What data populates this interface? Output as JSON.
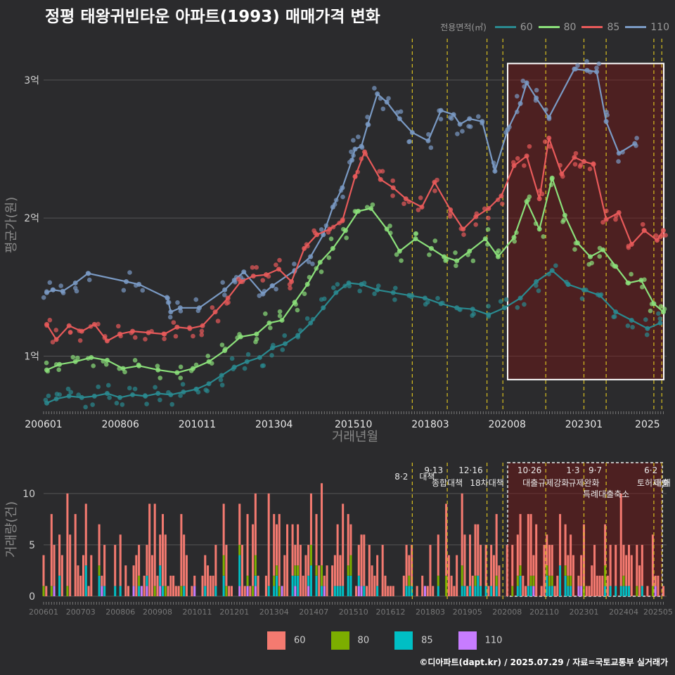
{
  "title": "정평 태왕귀빈타운 아파트(1993) 매매가격 변화",
  "footer": "©디아파트(dapt.kr) / 2025.07.29 / 자료=국토교통부 실거래가",
  "colors": {
    "s60": "#2a8a90",
    "s80": "#8be07a",
    "s85": "#e85a5a",
    "s110": "#7a9ac4",
    "b60": "#f47a70",
    "b80": "#7cae00",
    "b85": "#00bfc4",
    "b110": "#c77cff"
  },
  "top_legend": {
    "title": "전용면적(㎡)",
    "items": [
      {
        "label": "60",
        "color": "#2a8a90"
      },
      {
        "label": "80",
        "color": "#8be07a"
      },
      {
        "label": "85",
        "color": "#e85a5a"
      },
      {
        "label": "110",
        "color": "#7a9ac4"
      }
    ]
  },
  "bottom_legend": {
    "items": [
      {
        "label": "60",
        "color": "#f47a70"
      },
      {
        "label": "80",
        "color": "#7cae00"
      },
      {
        "label": "85",
        "color": "#00bfc4"
      },
      {
        "label": "110",
        "color": "#c77cff"
      }
    ]
  },
  "chart_data": [
    {
      "type": "line",
      "ylabel": "평균가(원)",
      "xlabel": "거래년월",
      "x_ticks": [
        "200601",
        "200806",
        "201011",
        "201304",
        "201510",
        "201803",
        "202008",
        "202301",
        "2025"
      ],
      "y_ticks": [
        {
          "v": 10000,
          "label": "1억"
        },
        {
          "v": 20000,
          "label": "2억"
        },
        {
          "v": 30000,
          "label": "3억"
        }
      ],
      "ylim": [
        6000,
        33000
      ],
      "xlim": [
        2006.0,
        2025.6
      ],
      "grid": true,
      "legend_position": "top-right",
      "highlight": {
        "x0": 2020.6,
        "x1": 2025.6,
        "y0": 8300,
        "y1": 31200
      },
      "series": [
        {
          "name": "110",
          "color": "#7a9ac4",
          "x": [
            2006.1,
            2006.3,
            2006.6,
            2007.0,
            2007.4,
            2008.6,
            2009.0,
            2009.9,
            2010.0,
            2010.3,
            2010.9,
            2011.7,
            2012.0,
            2012.3,
            2012.9,
            2013.2,
            2013.9,
            2014.4,
            2014.8,
            2015.1,
            2015.4,
            2015.7,
            2015.8,
            2016.0,
            2016.2,
            2016.5,
            2016.8,
            2017.2,
            2017.6,
            2018.1,
            2018.5,
            2018.9,
            2019.1,
            2019.4,
            2019.8,
            2020.2,
            2020.6,
            2021.0,
            2021.2,
            2021.5,
            2021.9,
            2022.7,
            2023.1,
            2023.4,
            2023.7,
            2024.1,
            2024.6
          ],
          "y": [
            14600,
            14800,
            14700,
            15300,
            16000,
            15400,
            15200,
            14200,
            13200,
            13500,
            13500,
            14800,
            15500,
            16100,
            14500,
            15100,
            16200,
            17200,
            18800,
            20800,
            22200,
            24200,
            25000,
            25200,
            26800,
            29000,
            28400,
            27200,
            26200,
            25600,
            27800,
            27500,
            26800,
            27200,
            27000,
            23400,
            26400,
            28300,
            29800,
            28700,
            27300,
            30800,
            30700,
            30600,
            27000,
            24700,
            25400
          ]
        },
        {
          "name": "85",
          "color": "#e85a5a",
          "x": [
            2006.1,
            2006.4,
            2006.8,
            2007.2,
            2007.6,
            2008.0,
            2008.4,
            2008.8,
            2009.3,
            2009.8,
            2010.2,
            2010.6,
            2011.0,
            2011.4,
            2011.8,
            2012.2,
            2012.6,
            2013.0,
            2013.4,
            2013.8,
            2014.2,
            2014.6,
            2015.0,
            2015.4,
            2015.8,
            2016.1,
            2016.6,
            2017.0,
            2017.4,
            2017.9,
            2018.3,
            2018.8,
            2019.2,
            2019.6,
            2020.0,
            2020.4,
            2020.8,
            2021.2,
            2021.6,
            2021.9,
            2022.3,
            2022.7,
            2023.0,
            2023.3,
            2023.7,
            2024.1,
            2024.5,
            2024.9,
            2025.3,
            2025.5
          ],
          "y": [
            12300,
            11200,
            12200,
            11800,
            12300,
            11100,
            11600,
            11800,
            11700,
            11600,
            12100,
            12000,
            12200,
            13200,
            14200,
            15400,
            15800,
            15900,
            16300,
            15400,
            17800,
            18800,
            19200,
            19800,
            23000,
            24800,
            22800,
            22200,
            21400,
            20800,
            22600,
            20600,
            19200,
            20100,
            20700,
            21600,
            23800,
            24500,
            21400,
            25800,
            23200,
            24400,
            24100,
            23900,
            19900,
            20400,
            18100,
            19100,
            18400,
            19100
          ]
        },
        {
          "name": "80",
          "color": "#8be07a",
          "x": [
            2006.1,
            2006.5,
            2007.0,
            2007.5,
            2008.0,
            2008.5,
            2009.0,
            2009.6,
            2010.2,
            2010.7,
            2011.2,
            2011.7,
            2012.2,
            2012.7,
            2013.1,
            2013.5,
            2013.9,
            2014.3,
            2014.7,
            2015.1,
            2015.5,
            2015.9,
            2016.3,
            2016.8,
            2017.2,
            2017.7,
            2018.2,
            2018.6,
            2019.0,
            2019.4,
            2019.9,
            2020.3,
            2020.8,
            2021.2,
            2021.6,
            2022.0,
            2022.4,
            2022.8,
            2023.2,
            2023.6,
            2024.0,
            2024.4,
            2024.8,
            2025.2,
            2025.5
          ],
          "y": [
            9000,
            9400,
            9600,
            9900,
            9700,
            9100,
            9300,
            9000,
            8800,
            9100,
            9600,
            10400,
            11400,
            11600,
            12400,
            12600,
            13900,
            15200,
            16800,
            17800,
            19100,
            20500,
            20700,
            19200,
            17600,
            18500,
            17800,
            17200,
            16900,
            17600,
            18500,
            17200,
            18600,
            21200,
            19200,
            22900,
            20200,
            18200,
            17200,
            17700,
            16500,
            15300,
            15500,
            13800,
            13200
          ]
        },
        {
          "name": "60",
          "color": "#2a8a90",
          "x": [
            2006.1,
            2006.4,
            2006.8,
            2007.2,
            2007.6,
            2008.0,
            2008.4,
            2008.8,
            2009.2,
            2009.6,
            2010.0,
            2010.4,
            2010.8,
            2011.2,
            2011.6,
            2012.0,
            2012.4,
            2012.8,
            2013.2,
            2013.6,
            2014.0,
            2014.4,
            2014.8,
            2015.2,
            2015.6,
            2016.0,
            2016.5,
            2017.0,
            2017.5,
            2018.0,
            2018.5,
            2019.0,
            2019.5,
            2020.0,
            2020.5,
            2021.0,
            2021.5,
            2022.0,
            2022.5,
            2023.0,
            2023.5,
            2024.0,
            2024.5,
            2025.0,
            2025.4
          ],
          "y": [
            6600,
            6900,
            7100,
            7000,
            7100,
            7300,
            7000,
            7200,
            7100,
            7300,
            7200,
            7400,
            7600,
            8000,
            8600,
            9200,
            9600,
            9900,
            10600,
            10900,
            11500,
            12400,
            13500,
            14600,
            15300,
            15200,
            14800,
            14600,
            14400,
            14200,
            13800,
            13500,
            13400,
            13000,
            13500,
            14200,
            15400,
            16200,
            15200,
            14800,
            14400,
            13200,
            12600,
            12000,
            12400
          ]
        }
      ]
    },
    {
      "type": "bar",
      "ylabel": "거래량(건)",
      "x_ticks": [
        "200601",
        "200703",
        "200806",
        "200908",
        "201011",
        "201201",
        "201304",
        "201407",
        "201510",
        "201612",
        "201803",
        "201905",
        "202008",
        "202110",
        "202301",
        "202404",
        "202505"
      ],
      "y_ticks": [
        0,
        5,
        10
      ],
      "ylim": [
        0,
        13
      ],
      "xlim": [
        2006.0,
        2025.6
      ],
      "grid": true,
      "stacked": true,
      "highlight": {
        "x0": 2020.6,
        "x1": 2025.6
      },
      "series_names": [
        "60",
        "80",
        "85",
        "110"
      ]
    }
  ],
  "policy_events": [
    {
      "x": 2017.6,
      "date": "8·2",
      "desc": "대책",
      "top": true
    },
    {
      "x": 2018.7,
      "date": "9·13",
      "desc": "종합대책",
      "top": true
    },
    {
      "x": 2019.95,
      "date": "12·16",
      "desc": "18차대책",
      "top": true
    },
    {
      "x": 2020.45,
      "date": "",
      "desc": "",
      "top": false
    },
    {
      "x": 2021.8,
      "date": "10·26",
      "desc": "대출규제강화",
      "top": true
    },
    {
      "x": 2023.0,
      "date": "1·3",
      "desc": "규제완화",
      "top": true
    },
    {
      "x": 2023.7,
      "date": "9·7",
      "desc": "특례대출축소",
      "top": true
    },
    {
      "x": 2025.2,
      "date": "",
      "desc": "토허제 해",
      "top": false
    },
    {
      "x": 2025.45,
      "date": "6·2",
      "desc": "대출",
      "top": true
    }
  ]
}
